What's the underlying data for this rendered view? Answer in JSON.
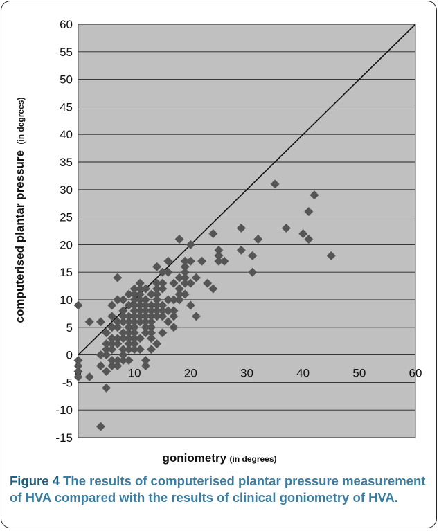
{
  "chart_data": {
    "type": "scatter",
    "xlabel": "goniometry",
    "xlabel_unit": "(in degrees)",
    "ylabel": "computerised plantar pressure",
    "ylabel_unit": "(in degrees)",
    "xlim": [
      0,
      60
    ],
    "ylim": [
      -15,
      60
    ],
    "x_ticks": [
      "0",
      "10",
      "20",
      "30",
      "40",
      "50",
      "60"
    ],
    "y_ticks": [
      "-15",
      "-10",
      "-5",
      "0",
      "5",
      "10",
      "15",
      "20",
      "25",
      "30",
      "35",
      "40",
      "45",
      "50",
      "55",
      "60"
    ],
    "grid": "horizontal",
    "reference_line": {
      "x": [
        0,
        60
      ],
      "y": [
        0,
        60
      ]
    },
    "series": [
      {
        "marker": "diamond",
        "color": "#555555",
        "x": [
          0,
          0,
          0,
          0,
          0,
          2,
          2,
          4,
          4,
          4,
          4,
          5,
          5,
          5,
          5,
          5,
          5,
          6,
          6,
          6,
          6,
          6,
          6,
          6,
          6,
          6,
          7,
          7,
          7,
          7,
          7,
          7,
          7,
          7,
          8,
          8,
          8,
          8,
          8,
          8,
          8,
          8,
          8,
          9,
          9,
          9,
          9,
          9,
          9,
          9,
          9,
          9,
          9,
          10,
          10,
          10,
          10,
          10,
          10,
          10,
          10,
          10,
          10,
          10,
          10,
          11,
          11,
          11,
          11,
          11,
          11,
          11,
          11,
          11,
          11,
          12,
          12,
          12,
          12,
          12,
          12,
          12,
          12,
          12,
          12,
          13,
          13,
          13,
          13,
          13,
          13,
          13,
          13,
          13,
          14,
          14,
          14,
          14,
          14,
          14,
          14,
          14,
          14,
          15,
          15,
          15,
          15,
          15,
          15,
          15,
          16,
          16,
          16,
          16,
          16,
          17,
          17,
          17,
          17,
          17,
          18,
          18,
          18,
          18,
          18,
          19,
          19,
          19,
          19,
          19,
          19,
          20,
          20,
          20,
          20,
          21,
          21,
          22,
          23,
          24,
          24,
          25,
          25,
          25,
          26,
          29,
          29,
          31,
          31,
          32,
          35,
          37,
          40,
          41,
          41,
          42,
          45
        ],
        "y": [
          9,
          -1,
          -2,
          -3,
          -4,
          6,
          -4,
          6,
          -2,
          0,
          -13,
          4,
          0,
          -3,
          -6,
          2,
          1,
          9,
          7,
          3,
          1,
          2,
          -1,
          -2,
          5,
          3,
          14,
          10,
          6,
          3,
          2,
          -1,
          -2,
          5,
          10,
          8,
          7,
          4,
          1,
          0,
          -1,
          6,
          3,
          11,
          9,
          7,
          6,
          5,
          4,
          3,
          2,
          1,
          -1,
          12,
          11,
          10,
          9,
          8,
          7,
          6,
          5,
          4,
          3,
          2,
          1,
          13,
          12,
          11,
          10,
          9,
          8,
          7,
          6,
          3,
          1,
          12,
          10,
          9,
          8,
          7,
          6,
          5,
          4,
          -1,
          -2,
          11,
          9,
          8,
          7,
          6,
          5,
          4,
          3,
          1,
          16,
          13,
          12,
          11,
          10,
          9,
          8,
          7,
          2,
          15,
          13,
          12,
          9,
          8,
          7,
          4,
          17,
          15,
          10,
          8,
          6,
          13,
          10,
          8,
          7,
          5,
          21,
          14,
          12,
          11,
          10,
          17,
          16,
          15,
          14,
          13,
          11,
          20,
          17,
          13,
          9,
          14,
          7,
          17,
          13,
          22,
          12,
          19,
          18,
          17,
          17,
          23,
          19,
          18,
          15,
          21,
          31,
          23,
          22,
          26,
          21,
          29,
          18
        ]
      }
    ]
  },
  "caption": {
    "figure_number": "Figure 4",
    "text": "The results of computerised plantar pressure measurement of HVA compared with the results of clinical goniometry of HVA."
  }
}
